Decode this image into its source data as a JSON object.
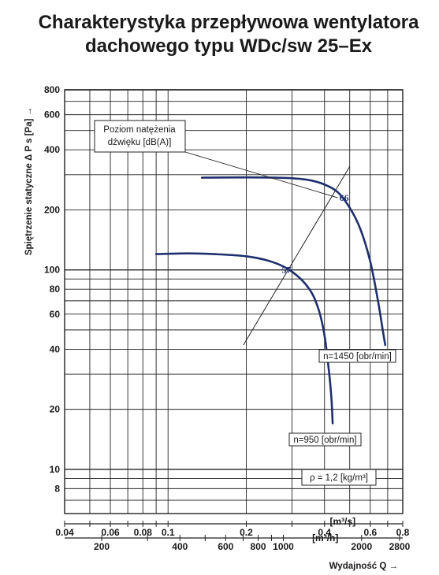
{
  "title_lines": [
    "Charakterystyka przepływowa wentylatora",
    "dachowego typu WDc/sw 25–Ex"
  ],
  "colors": {
    "curve": "#1f2f6e",
    "grid": "#222222",
    "text": "#1a1a1a",
    "noise_label": "#1f2f6e"
  },
  "chart_data": {
    "type": "line",
    "title": "Charakterystyka przepływowa wentylatora dachowego typu WDc/sw 25–Ex",
    "xlabel": "Wydajność Q →",
    "ylabel": "Spiętrzenie statyczne Δ P s [Pa] →",
    "x_scale": "log",
    "y_scale": "log",
    "xlim": [
      0.04,
      0.8
    ],
    "ylim": [
      6,
      800
    ],
    "grid": true,
    "x_ticks_m3s": [
      "0.04",
      "0.06",
      "0.08",
      "0.1",
      "0.2",
      "0.4",
      "0.6",
      "0.8"
    ],
    "x_unit_m3s": "[m³/s]",
    "x_ticks_m3h": [
      "200",
      "400",
      "600",
      "800",
      "1000",
      "2000",
      "2800"
    ],
    "x_unit_m3h": "[m³/h]",
    "y_ticks": [
      "8",
      "10",
      "20",
      "40",
      "60",
      "80",
      "100",
      "200",
      "400",
      "600",
      "800"
    ],
    "series": [
      {
        "name": "n=1450 [obr/min]",
        "points": [
          [
            0.135,
            290
          ],
          [
            0.2,
            291
          ],
          [
            0.26,
            290
          ],
          [
            0.3,
            288
          ],
          [
            0.35,
            282
          ],
          [
            0.4,
            268
          ],
          [
            0.45,
            245
          ],
          [
            0.5,
            205
          ],
          [
            0.55,
            160
          ],
          [
            0.6,
            110
          ],
          [
            0.64,
            72
          ],
          [
            0.67,
            50
          ],
          [
            0.685,
            42
          ]
        ]
      },
      {
        "name": "n=950 [obr/min]",
        "points": [
          [
            0.09,
            120
          ],
          [
            0.12,
            121
          ],
          [
            0.15,
            120
          ],
          [
            0.2,
            117
          ],
          [
            0.25,
            110
          ],
          [
            0.3,
            98
          ],
          [
            0.35,
            80
          ],
          [
            0.38,
            63
          ],
          [
            0.4,
            47
          ],
          [
            0.415,
            32
          ],
          [
            0.425,
            23
          ],
          [
            0.43,
            17
          ]
        ]
      }
    ],
    "efficiency_line": {
      "points": [
        [
          0.195,
          42
        ],
        [
          0.5,
          330
        ]
      ]
    },
    "noise_annotations": [
      {
        "label": "66",
        "point": [
          0.45,
          230
        ]
      },
      {
        "label": "57",
        "point": [
          0.27,
          100
        ]
      }
    ],
    "noise_legend_text": [
      "Poziom natężenia",
      "dźwięku [dB(A)]"
    ],
    "density_label": "ρ = 1,2 [kg/m³]"
  }
}
